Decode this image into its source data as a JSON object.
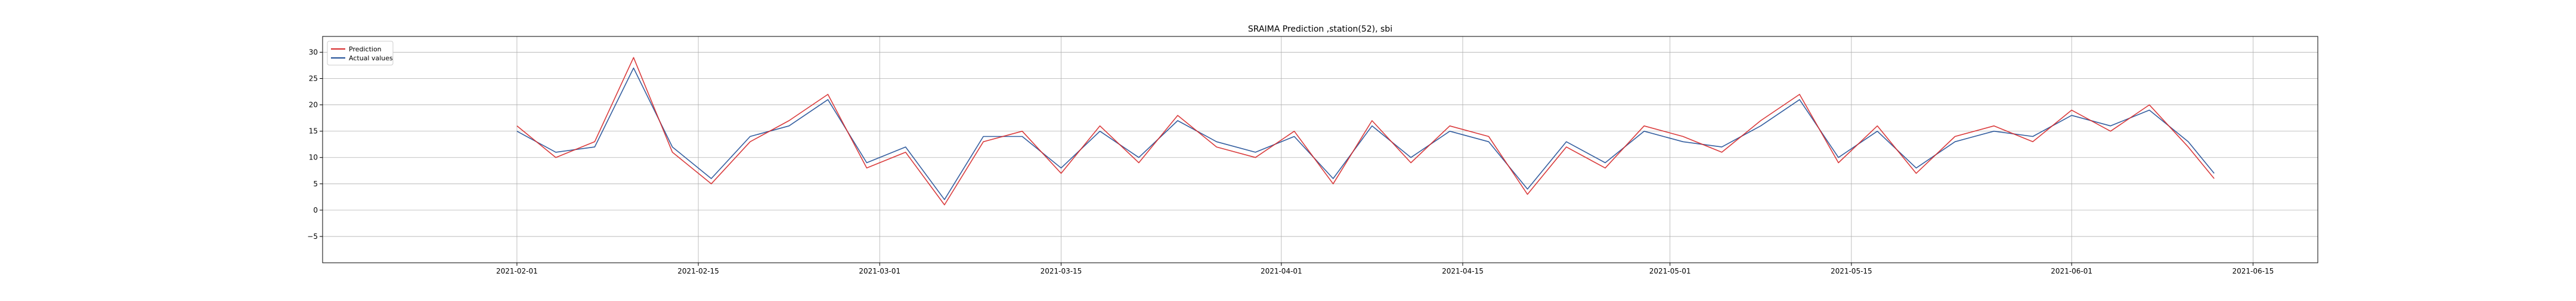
{
  "chart_data": {
    "type": "line",
    "title": "SRAIMA Prediction ,station(52), sbi",
    "xlabel": "",
    "ylabel": "",
    "x_range": [
      "2021-01-17",
      "2021-06-20"
    ],
    "ylim": [
      -10,
      33
    ],
    "x_ticks": [
      "2021-02-01",
      "2021-02-15",
      "2021-03-01",
      "2021-03-15",
      "2021-04-01",
      "2021-04-15",
      "2021-05-01",
      "2021-05-15",
      "2021-06-01",
      "2021-06-15"
    ],
    "y_ticks": [
      -5,
      0,
      5,
      10,
      15,
      20,
      25,
      30
    ],
    "y_tick_labels": [
      "−5",
      "0",
      "5",
      "10",
      "15",
      "20",
      "25",
      "30"
    ],
    "grid": true,
    "legend_position": "top-left",
    "series": [
      {
        "name": "Prediction",
        "color": "#d62728",
        "x": [
          "2021-02-01",
          "2021-02-04",
          "2021-02-07",
          "2021-02-10",
          "2021-02-13",
          "2021-02-16",
          "2021-02-19",
          "2021-02-22",
          "2021-02-25",
          "2021-02-28",
          "2021-03-03",
          "2021-03-06",
          "2021-03-09",
          "2021-03-12",
          "2021-03-15",
          "2021-03-18",
          "2021-03-21",
          "2021-03-24",
          "2021-03-27",
          "2021-03-30",
          "2021-04-02",
          "2021-04-05",
          "2021-04-08",
          "2021-04-11",
          "2021-04-14",
          "2021-04-17",
          "2021-04-20",
          "2021-04-23",
          "2021-04-26",
          "2021-04-29",
          "2021-05-02",
          "2021-05-05",
          "2021-05-08",
          "2021-05-11",
          "2021-05-14",
          "2021-05-17",
          "2021-05-20",
          "2021-05-23",
          "2021-05-26",
          "2021-05-29",
          "2021-06-01",
          "2021-06-04",
          "2021-06-07",
          "2021-06-10",
          "2021-06-12"
        ],
        "values": [
          16,
          10,
          13,
          29,
          11,
          5,
          13,
          17,
          22,
          8,
          11,
          1,
          13,
          15,
          7,
          16,
          9,
          18,
          12,
          10,
          15,
          5,
          17,
          9,
          16,
          14,
          3,
          12,
          8,
          16,
          14,
          11,
          17,
          22,
          9,
          16,
          7,
          14,
          16,
          13,
          19,
          15,
          20,
          12,
          6
        ]
      },
      {
        "name": "Actual values",
        "color": "#1f4e96",
        "x": [
          "2021-02-01",
          "2021-02-04",
          "2021-02-07",
          "2021-02-10",
          "2021-02-13",
          "2021-02-16",
          "2021-02-19",
          "2021-02-22",
          "2021-02-25",
          "2021-02-28",
          "2021-03-03",
          "2021-03-06",
          "2021-03-09",
          "2021-03-12",
          "2021-03-15",
          "2021-03-18",
          "2021-03-21",
          "2021-03-24",
          "2021-03-27",
          "2021-03-30",
          "2021-04-02",
          "2021-04-05",
          "2021-04-08",
          "2021-04-11",
          "2021-04-14",
          "2021-04-17",
          "2021-04-20",
          "2021-04-23",
          "2021-04-26",
          "2021-04-29",
          "2021-05-02",
          "2021-05-05",
          "2021-05-08",
          "2021-05-11",
          "2021-05-14",
          "2021-05-17",
          "2021-05-20",
          "2021-05-23",
          "2021-05-26",
          "2021-05-29",
          "2021-06-01",
          "2021-06-04",
          "2021-06-07",
          "2021-06-10",
          "2021-06-12"
        ],
        "values": [
          15,
          11,
          12,
          27,
          12,
          6,
          14,
          16,
          21,
          9,
          12,
          2,
          14,
          14,
          8,
          15,
          10,
          17,
          13,
          11,
          14,
          6,
          16,
          10,
          15,
          13,
          4,
          13,
          9,
          15,
          13,
          12,
          16,
          21,
          10,
          15,
          8,
          13,
          15,
          14,
          18,
          16,
          19,
          13,
          7
        ]
      }
    ]
  }
}
